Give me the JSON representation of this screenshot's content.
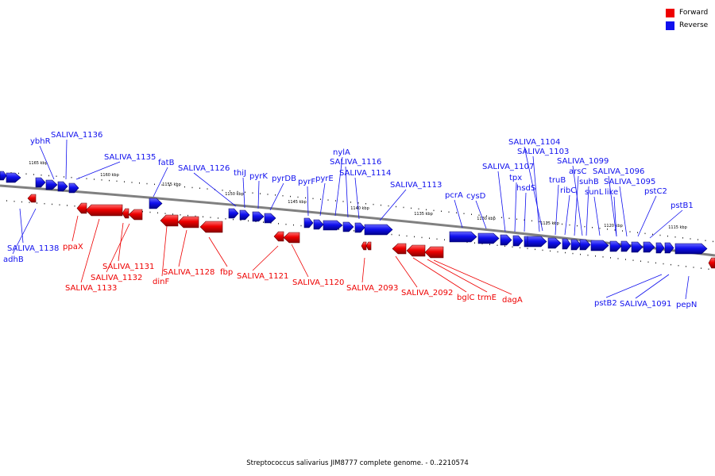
{
  "legend": [
    {
      "label": "Forward",
      "color": "#ee0000"
    },
    {
      "label": "Reverse",
      "color": "#1010ee"
    }
  ],
  "caption": "Streptococcus salivarius JIM8777 complete genome. - 0..2210574",
  "colors": {
    "forward": "#ee0000",
    "reverse": "#1010ee",
    "backbone": "#808080"
  },
  "ticks": [
    "1165 kbp",
    "1160 kbp",
    "1155 kbp",
    "1150 kbp",
    "1145 kbp",
    "1140 kbp",
    "1135 kbp",
    "1130 kbp",
    "1125 kbp",
    "1120 kbp",
    "1115 kbp"
  ],
  "reverse_labels": [
    "ybhR",
    "SALIVA_1136",
    "SALIVA_1135",
    "fatB",
    "SALIVA_1126",
    "thiJ",
    "pyrK",
    "pyrDB",
    "pyrF",
    "pyrE",
    "nylA",
    "SALIVA_1116",
    "SALIVA_1114",
    "SALIVA_1113",
    "pcrA",
    "cysD",
    "SALIVA_1104",
    "SALIVA_1103",
    "SALIVA_1107",
    "tpx",
    "hsdS",
    "truB",
    "ribC",
    "arsC",
    "SALIVA_1099",
    "suhB",
    "sunL",
    "SALIVA_1096",
    "SALIVA_1095",
    "like",
    "pstC2",
    "pstB1",
    "SALIVA_1138",
    "adhB",
    "pstB2",
    "SALIVA_1091",
    "pepN"
  ],
  "forward_labels": [
    "ppaX",
    "SALIVA_1131",
    "SALIVA_1132",
    "SALIVA_1133",
    "dinF",
    "SALIVA_1128",
    "fbp",
    "SALIVA_1121",
    "SALIVA_1120",
    "SALIVA_2093",
    "SALIVA_2092",
    "bglC",
    "trmE",
    "dagA"
  ]
}
